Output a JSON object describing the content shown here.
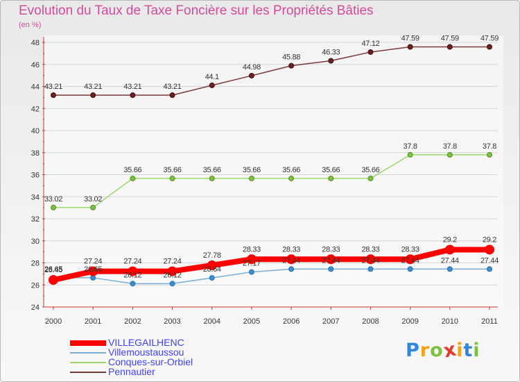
{
  "header": {
    "title": "Evolution du Taux de Taxe Foncière sur les Propriétés Bâties",
    "subtitle": "(en %)"
  },
  "brand": {
    "letters": [
      "P",
      "r",
      "o",
      "x",
      "i",
      "t",
      "i"
    ],
    "colors": [
      "#2e86de",
      "#f2a31b",
      "#7cc242",
      "#e23a2e",
      "#f2a31b",
      "#2e86de",
      "#7cc242"
    ]
  },
  "chart_data": {
    "type": "line",
    "x": [
      "2000",
      "2001",
      "2002",
      "2003",
      "2004",
      "2005",
      "2006",
      "2007",
      "2008",
      "2009",
      "2010",
      "2011"
    ],
    "y_ticks": [
      "24",
      "26",
      "28",
      "30",
      "32",
      "34",
      "36",
      "38",
      "40",
      "42",
      "44",
      "46",
      "48"
    ],
    "ylim": [
      24,
      48
    ],
    "grid": "horizontal",
    "legend_position": "bottom-left",
    "series": [
      {
        "name": "VILLEGAILHENC",
        "color": "#ff0000",
        "values": [
          26.45,
          27.24,
          27.24,
          27.24,
          27.78,
          28.33,
          28.33,
          28.33,
          28.33,
          28.33,
          29.2,
          29.2
        ],
        "labels": [
          "26.45",
          "27.24",
          "27.24",
          "27.24",
          "27.78",
          "28.33",
          "28.33",
          "28.33",
          "28.33",
          "28.33",
          "29.2",
          "29.2"
        ]
      },
      {
        "name": "Villemoustaussou",
        "color": "#7aaed6",
        "values": [
          26.65,
          26.65,
          26.12,
          26.12,
          26.64,
          27.17,
          27.44,
          27.44,
          27.44,
          27.44,
          27.44,
          27.44
        ],
        "labels": [
          "26.65",
          "26.65",
          "26.12",
          "26.12",
          "26.64",
          "27.17",
          "27.44",
          "27.44",
          "27.44",
          "27.44",
          "27.44",
          "27.44"
        ]
      },
      {
        "name": "Conques-sur-Orbiel",
        "color": "#9ed66a",
        "values": [
          33.02,
          33.02,
          35.66,
          35.66,
          35.66,
          35.66,
          35.66,
          35.66,
          35.66,
          37.8,
          37.8,
          37.8
        ],
        "labels": [
          "33.02",
          "33.02",
          "35.66",
          "35.66",
          "35.66",
          "35.66",
          "35.66",
          "35.66",
          "35.66",
          "37.8",
          "37.8",
          "37.8"
        ]
      },
      {
        "name": "Pennautier",
        "color": "#7d3a3a",
        "values": [
          43.21,
          43.21,
          43.21,
          43.21,
          44.1,
          44.98,
          45.88,
          46.33,
          47.12,
          47.59,
          47.59,
          47.59
        ],
        "labels": [
          "43.21",
          "43.21",
          "43.21",
          "43.21",
          "44.1",
          "44.98",
          "45.88",
          "46.33",
          "47.12",
          "47.59",
          "47.59",
          "47.59"
        ]
      }
    ]
  }
}
